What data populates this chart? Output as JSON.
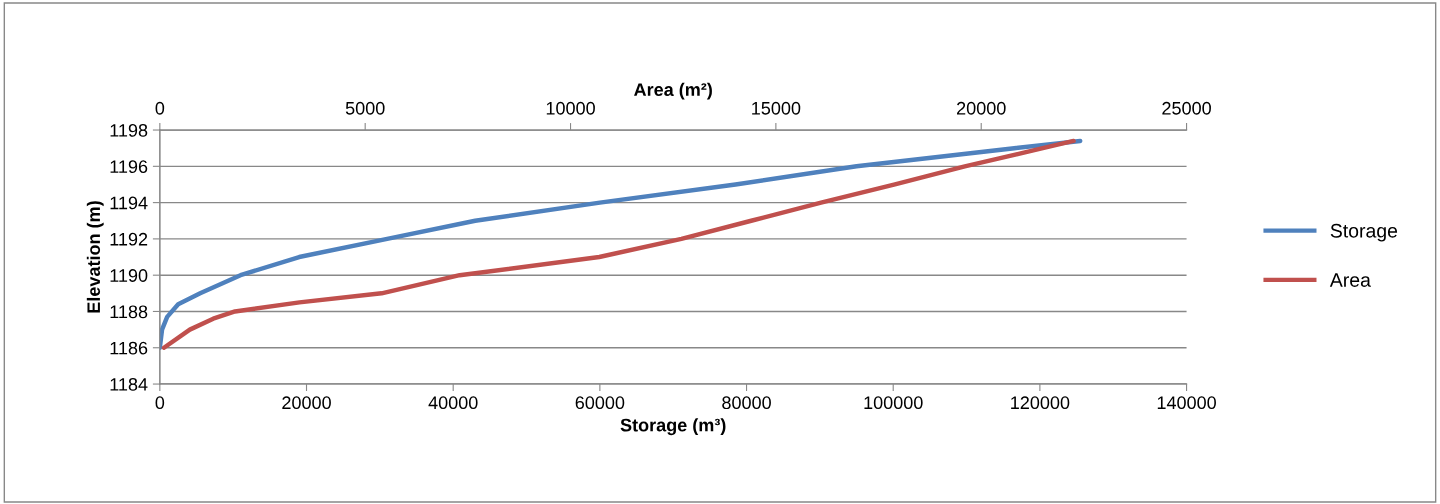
{
  "chart_data": {
    "type": "line",
    "xlabel": "Storage (m³)",
    "x2label": "Area (m²)",
    "ylabel": "Elevation (m)",
    "xlim": [
      0,
      140000
    ],
    "xticks": [
      0,
      20000,
      40000,
      60000,
      80000,
      100000,
      120000,
      140000
    ],
    "x2lim": [
      0,
      25000
    ],
    "x2ticks": [
      0,
      5000,
      10000,
      15000,
      20000,
      25000
    ],
    "ylim": [
      1184,
      1198
    ],
    "yticks": [
      1184,
      1186,
      1188,
      1190,
      1192,
      1194,
      1196,
      1198
    ],
    "grid": "y",
    "legend": "right",
    "marker": "none",
    "line_style": "solid",
    "series": [
      {
        "name": "Storage",
        "color": "#4f81bd",
        "x": [
          0,
          300,
          1000,
          2500,
          5500,
          11000,
          19000,
          31000,
          43000,
          60000,
          78500,
          95000,
          116500,
          125500
        ],
        "values": [
          1186,
          1187,
          1187.7,
          1188.4,
          1189,
          1190,
          1191,
          1192,
          1193,
          1194,
          1195,
          1196,
          1197,
          1197.4
        ]
      },
      {
        "name": "Area",
        "color": "#c0504d",
        "axis": "x2",
        "x": [
          100,
          730,
          1300,
          1830,
          3400,
          5400,
          7300,
          10700,
          12700,
          14400,
          16100,
          17900,
          19600,
          21500,
          22250
        ],
        "values": [
          1186,
          1187,
          1187.6,
          1188,
          1188.5,
          1189,
          1190,
          1191,
          1192,
          1193,
          1194,
          1195,
          1196,
          1197,
          1197.4
        ]
      }
    ]
  }
}
